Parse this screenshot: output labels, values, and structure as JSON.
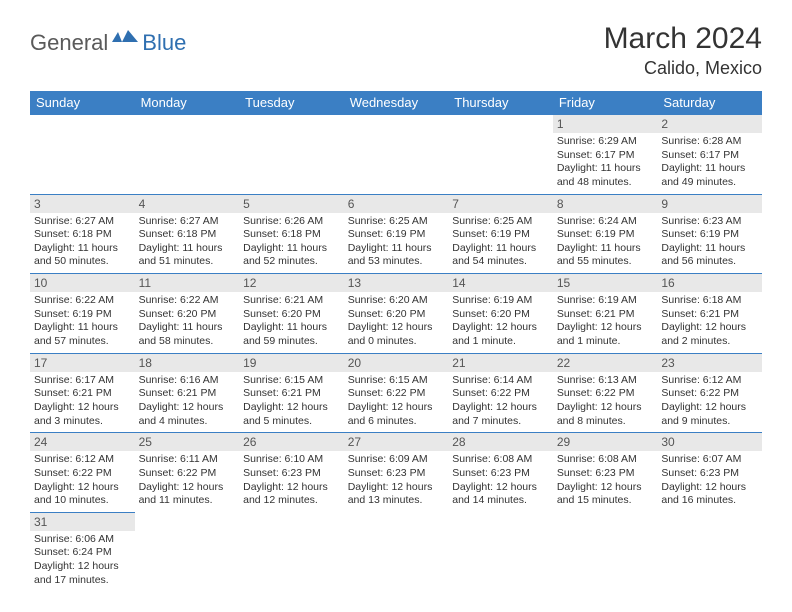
{
  "brand": {
    "general": "General",
    "blue": "Blue"
  },
  "title": "March 2024",
  "location": "Calido, Mexico",
  "header_bg": "#3b7fc4",
  "weekdays": [
    "Sunday",
    "Monday",
    "Tuesday",
    "Wednesday",
    "Thursday",
    "Friday",
    "Saturday"
  ],
  "weeks": [
    [
      null,
      null,
      null,
      null,
      null,
      {
        "n": "1",
        "sr": "Sunrise: 6:29 AM",
        "ss": "Sunset: 6:17 PM",
        "dl": "Daylight: 11 hours and 48 minutes."
      },
      {
        "n": "2",
        "sr": "Sunrise: 6:28 AM",
        "ss": "Sunset: 6:17 PM",
        "dl": "Daylight: 11 hours and 49 minutes."
      }
    ],
    [
      {
        "n": "3",
        "sr": "Sunrise: 6:27 AM",
        "ss": "Sunset: 6:18 PM",
        "dl": "Daylight: 11 hours and 50 minutes."
      },
      {
        "n": "4",
        "sr": "Sunrise: 6:27 AM",
        "ss": "Sunset: 6:18 PM",
        "dl": "Daylight: 11 hours and 51 minutes."
      },
      {
        "n": "5",
        "sr": "Sunrise: 6:26 AM",
        "ss": "Sunset: 6:18 PM",
        "dl": "Daylight: 11 hours and 52 minutes."
      },
      {
        "n": "6",
        "sr": "Sunrise: 6:25 AM",
        "ss": "Sunset: 6:19 PM",
        "dl": "Daylight: 11 hours and 53 minutes."
      },
      {
        "n": "7",
        "sr": "Sunrise: 6:25 AM",
        "ss": "Sunset: 6:19 PM",
        "dl": "Daylight: 11 hours and 54 minutes."
      },
      {
        "n": "8",
        "sr": "Sunrise: 6:24 AM",
        "ss": "Sunset: 6:19 PM",
        "dl": "Daylight: 11 hours and 55 minutes."
      },
      {
        "n": "9",
        "sr": "Sunrise: 6:23 AM",
        "ss": "Sunset: 6:19 PM",
        "dl": "Daylight: 11 hours and 56 minutes."
      }
    ],
    [
      {
        "n": "10",
        "sr": "Sunrise: 6:22 AM",
        "ss": "Sunset: 6:19 PM",
        "dl": "Daylight: 11 hours and 57 minutes."
      },
      {
        "n": "11",
        "sr": "Sunrise: 6:22 AM",
        "ss": "Sunset: 6:20 PM",
        "dl": "Daylight: 11 hours and 58 minutes."
      },
      {
        "n": "12",
        "sr": "Sunrise: 6:21 AM",
        "ss": "Sunset: 6:20 PM",
        "dl": "Daylight: 11 hours and 59 minutes."
      },
      {
        "n": "13",
        "sr": "Sunrise: 6:20 AM",
        "ss": "Sunset: 6:20 PM",
        "dl": "Daylight: 12 hours and 0 minutes."
      },
      {
        "n": "14",
        "sr": "Sunrise: 6:19 AM",
        "ss": "Sunset: 6:20 PM",
        "dl": "Daylight: 12 hours and 1 minute."
      },
      {
        "n": "15",
        "sr": "Sunrise: 6:19 AM",
        "ss": "Sunset: 6:21 PM",
        "dl": "Daylight: 12 hours and 1 minute."
      },
      {
        "n": "16",
        "sr": "Sunrise: 6:18 AM",
        "ss": "Sunset: 6:21 PM",
        "dl": "Daylight: 12 hours and 2 minutes."
      }
    ],
    [
      {
        "n": "17",
        "sr": "Sunrise: 6:17 AM",
        "ss": "Sunset: 6:21 PM",
        "dl": "Daylight: 12 hours and 3 minutes."
      },
      {
        "n": "18",
        "sr": "Sunrise: 6:16 AM",
        "ss": "Sunset: 6:21 PM",
        "dl": "Daylight: 12 hours and 4 minutes."
      },
      {
        "n": "19",
        "sr": "Sunrise: 6:15 AM",
        "ss": "Sunset: 6:21 PM",
        "dl": "Daylight: 12 hours and 5 minutes."
      },
      {
        "n": "20",
        "sr": "Sunrise: 6:15 AM",
        "ss": "Sunset: 6:22 PM",
        "dl": "Daylight: 12 hours and 6 minutes."
      },
      {
        "n": "21",
        "sr": "Sunrise: 6:14 AM",
        "ss": "Sunset: 6:22 PM",
        "dl": "Daylight: 12 hours and 7 minutes."
      },
      {
        "n": "22",
        "sr": "Sunrise: 6:13 AM",
        "ss": "Sunset: 6:22 PM",
        "dl": "Daylight: 12 hours and 8 minutes."
      },
      {
        "n": "23",
        "sr": "Sunrise: 6:12 AM",
        "ss": "Sunset: 6:22 PM",
        "dl": "Daylight: 12 hours and 9 minutes."
      }
    ],
    [
      {
        "n": "24",
        "sr": "Sunrise: 6:12 AM",
        "ss": "Sunset: 6:22 PM",
        "dl": "Daylight: 12 hours and 10 minutes."
      },
      {
        "n": "25",
        "sr": "Sunrise: 6:11 AM",
        "ss": "Sunset: 6:22 PM",
        "dl": "Daylight: 12 hours and 11 minutes."
      },
      {
        "n": "26",
        "sr": "Sunrise: 6:10 AM",
        "ss": "Sunset: 6:23 PM",
        "dl": "Daylight: 12 hours and 12 minutes."
      },
      {
        "n": "27",
        "sr": "Sunrise: 6:09 AM",
        "ss": "Sunset: 6:23 PM",
        "dl": "Daylight: 12 hours and 13 minutes."
      },
      {
        "n": "28",
        "sr": "Sunrise: 6:08 AM",
        "ss": "Sunset: 6:23 PM",
        "dl": "Daylight: 12 hours and 14 minutes."
      },
      {
        "n": "29",
        "sr": "Sunrise: 6:08 AM",
        "ss": "Sunset: 6:23 PM",
        "dl": "Daylight: 12 hours and 15 minutes."
      },
      {
        "n": "30",
        "sr": "Sunrise: 6:07 AM",
        "ss": "Sunset: 6:23 PM",
        "dl": "Daylight: 12 hours and 16 minutes."
      }
    ],
    [
      {
        "n": "31",
        "sr": "Sunrise: 6:06 AM",
        "ss": "Sunset: 6:24 PM",
        "dl": "Daylight: 12 hours and 17 minutes."
      },
      null,
      null,
      null,
      null,
      null,
      null
    ]
  ]
}
